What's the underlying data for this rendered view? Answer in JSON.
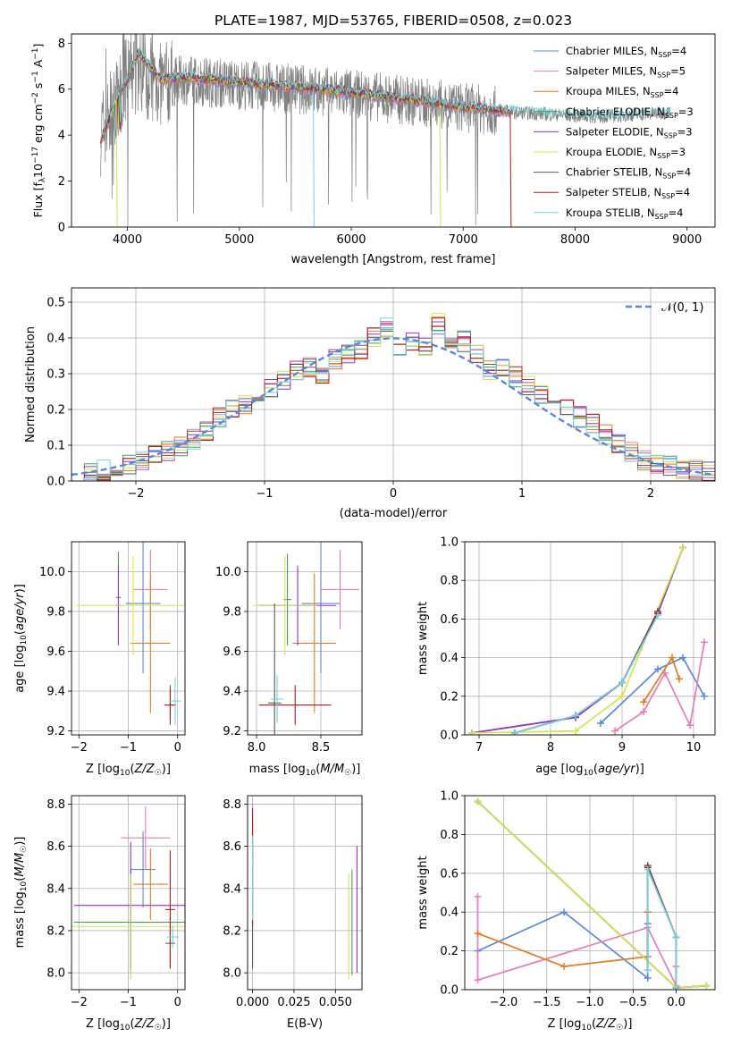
{
  "figure": {
    "title": "PLATE=1987, MJD=53765, FIBERID=0508, z=0.023"
  },
  "colors": {
    "Chabrier MILES": "#5b87d6",
    "Salpeter MILES": "#e27fb8",
    "Kroupa MILES": "#e07b20",
    "Chabrier ELODIE": "#4e9a4e",
    "Salpeter ELODIE": "#9a2fc9",
    "Kroupa ELODIE": "#d4e44a",
    "Chabrier STELIB": "#5a5a5a",
    "Salpeter STELIB": "#b01c1c",
    "Kroupa STELIB": "#72d4e0",
    "data": "#7f7f7f",
    "normal": "#5b87d6"
  },
  "chart_data": [
    {
      "id": "spectrum",
      "type": "line",
      "xlabel": "wavelength [Angstrom, rest frame]",
      "ylabel": "Flux [f_λ 10^-17 erg cm^-2 s^-1 A^-1]",
      "xlim": [
        3500,
        9250
      ],
      "ylim": [
        0,
        8.4
      ],
      "xticks": [
        "4000",
        "5000",
        "6000",
        "7000",
        "8000",
        "9000"
      ],
      "yticks": [
        "0",
        "2",
        "4",
        "6",
        "8"
      ],
      "legend_position": "upper-right",
      "legend": [
        {
          "model": "Chabrier MILES",
          "nssp": "4"
        },
        {
          "model": "Salpeter MILES",
          "nssp": "5"
        },
        {
          "model": "Kroupa MILES",
          "nssp": "4"
        },
        {
          "model": "Chabrier ELODIE",
          "nssp": "3"
        },
        {
          "model": "Salpeter ELODIE",
          "nssp": "3"
        },
        {
          "model": "Kroupa ELODIE",
          "nssp": "3"
        },
        {
          "model": "Chabrier STELIB",
          "nssp": "4"
        },
        {
          "model": "Salpeter STELIB",
          "nssp": "4"
        },
        {
          "model": "Kroupa STELIB",
          "nssp": "4"
        }
      ],
      "data_trend": {
        "x": [
          3750,
          3900,
          4000,
          4100,
          4300,
          4500,
          5000,
          5500,
          6000,
          6500,
          7000,
          7400,
          7800,
          8200,
          8600,
          8850
        ],
        "y": [
          4.0,
          5.4,
          6.5,
          6.8,
          6.2,
          6.4,
          6.2,
          6.0,
          5.8,
          5.5,
          5.2,
          5.0,
          4.9,
          4.8,
          4.9,
          5.0
        ]
      },
      "model_trend": {
        "x": [
          3750,
          3900,
          4000,
          4100,
          4300,
          4500,
          5000,
          5500,
          6000,
          6500,
          7000,
          7400,
          7800,
          8200,
          8600,
          8850
        ],
        "y": [
          3.6,
          5.5,
          6.4,
          7.6,
          6.4,
          6.5,
          6.3,
          6.1,
          5.85,
          5.55,
          5.2,
          5.05,
          4.9,
          4.75,
          4.85,
          5.0
        ]
      },
      "dropouts": [
        {
          "x": 3900,
          "y": 0.0,
          "series": "Kroupa ELODIE"
        },
        {
          "x": 5660,
          "y": 0.0,
          "series": "Kroupa STELIB"
        },
        {
          "x": 6790,
          "y": 0.0,
          "series": "Kroupa ELODIE"
        },
        {
          "x": 7420,
          "y": 0.0,
          "series": "Salpeter STELIB"
        }
      ]
    },
    {
      "id": "residuals",
      "type": "line",
      "xlabel": "(data-model)/error",
      "ylabel": "Normed distribution",
      "xlim": [
        -2.5,
        2.5
      ],
      "ylim": [
        0,
        0.54
      ],
      "xticks": [
        "−2",
        "−1",
        "0",
        "1",
        "2"
      ],
      "yticks": [
        "0.0",
        "0.1",
        "0.2",
        "0.3",
        "0.4",
        "0.5"
      ],
      "grid": true,
      "legend_position": "upper-right",
      "normal_label": "𝒩(0, 1)",
      "bin_edges": [
        -2.5,
        -2.4,
        -2.3,
        -2.2,
        -2.1,
        -2.0,
        -1.9,
        -1.8,
        -1.7,
        -1.6,
        -1.5,
        -1.4,
        -1.3,
        -1.2,
        -1.1,
        -1.0,
        -0.9,
        -0.8,
        -0.7,
        -0.6,
        -0.5,
        -0.4,
        -0.3,
        -0.2,
        -0.1,
        0.0,
        0.1,
        0.2,
        0.3,
        0.4,
        0.5,
        0.6,
        0.7,
        0.8,
        0.9,
        1.0,
        1.1,
        1.2,
        1.3,
        1.4,
        1.5,
        1.6,
        1.7,
        1.8,
        1.9,
        2.0,
        2.1,
        2.2,
        2.3,
        2.4,
        2.5
      ],
      "base_counts": [
        0.02,
        0.025,
        0.03,
        0.04,
        0.045,
        0.055,
        0.07,
        0.085,
        0.1,
        0.115,
        0.14,
        0.175,
        0.2,
        0.215,
        0.24,
        0.26,
        0.28,
        0.31,
        0.32,
        0.3,
        0.34,
        0.36,
        0.37,
        0.4,
        0.43,
        0.37,
        0.39,
        0.38,
        0.44,
        0.38,
        0.39,
        0.35,
        0.31,
        0.32,
        0.29,
        0.27,
        0.24,
        0.23,
        0.21,
        0.18,
        0.16,
        0.13,
        0.1,
        0.08,
        0.06,
        0.05,
        0.045,
        0.035,
        0.03,
        0.025
      ]
    },
    {
      "id": "age_vs_Z",
      "type": "scatter",
      "xlabel": "Z [log10(Z/Z☉)]",
      "ylabel": "age  [log10(age/yr)]",
      "xlim": [
        -2.15,
        0.15
      ],
      "ylim": [
        9.18,
        10.15
      ],
      "xticks": [
        "−2",
        "−1",
        "0"
      ],
      "yticks": [
        "9.2",
        "9.4",
        "9.6",
        "9.8",
        "10.0"
      ],
      "grid": true,
      "points": [
        {
          "series": "Chabrier MILES",
          "x": -0.7,
          "y": 9.84,
          "xerr": 0.35,
          "yerr": 0.35
        },
        {
          "series": "Salpeter MILES",
          "x": -0.55,
          "y": 9.91,
          "xerr": 0.35,
          "yerr": 0.2
        },
        {
          "series": "Kroupa MILES",
          "x": -0.55,
          "y": 9.64,
          "xerr": 0.4,
          "yerr": 0.35
        },
        {
          "series": "Chabrier ELODIE",
          "x": -1.2,
          "y": 9.87,
          "xerr": 0.05,
          "yerr": 0.23
        },
        {
          "series": "Salpeter ELODIE",
          "x": -1.2,
          "y": 9.83,
          "xerr": 0.05,
          "yerr": 0.2
        },
        {
          "series": "Kroupa ELODIE",
          "x": -0.9,
          "y": 9.83,
          "xerr": 1.15,
          "yerr": 0.25
        },
        {
          "series": "Chabrier STELIB",
          "x": -0.15,
          "y": 9.33,
          "xerr": 0.1,
          "yerr": 0.1
        },
        {
          "series": "Salpeter STELIB",
          "x": -0.15,
          "y": 9.33,
          "xerr": 0.12,
          "yerr": 0.08
        },
        {
          "series": "Kroupa STELIB",
          "x": -0.05,
          "y": 9.35,
          "xerr": 0.12,
          "yerr": 0.12
        }
      ]
    },
    {
      "id": "age_vs_mass",
      "type": "scatter",
      "xlabel": "mass [log10(M/M☉)]",
      "ylabel": "",
      "xlim": [
        7.93,
        8.82
      ],
      "ylim": [
        9.18,
        10.15
      ],
      "xticks": [
        "8.0",
        "8.5"
      ],
      "yticks": [
        "9.2",
        "9.4",
        "9.6",
        "9.8",
        "10.0"
      ],
      "grid": true,
      "points": [
        {
          "series": "Chabrier MILES",
          "x": 8.5,
          "y": 9.84,
          "xerr": 0.15,
          "yerr": 0.35
        },
        {
          "series": "Salpeter MILES",
          "x": 8.65,
          "y": 9.91,
          "xerr": 0.15,
          "yerr": 0.2
        },
        {
          "series": "Kroupa MILES",
          "x": 8.45,
          "y": 9.64,
          "xerr": 0.17,
          "yerr": 0.35
        },
        {
          "series": "Chabrier ELODIE",
          "x": 8.24,
          "y": 9.86,
          "xerr": 0.03,
          "yerr": 0.23
        },
        {
          "series": "Salpeter ELODIE",
          "x": 8.32,
          "y": 9.83,
          "xerr": 0.3,
          "yerr": 0.2
        },
        {
          "series": "Kroupa ELODIE",
          "x": 8.22,
          "y": 9.83,
          "xerr": 0.25,
          "yerr": 0.25
        },
        {
          "series": "Chabrier STELIB",
          "x": 8.14,
          "y": 9.34,
          "xerr": 0.05,
          "yerr": 0.5
        },
        {
          "series": "Salpeter STELIB",
          "x": 8.3,
          "y": 9.33,
          "xerr": 0.28,
          "yerr": 0.1
        },
        {
          "series": "Kroupa STELIB",
          "x": 8.16,
          "y": 9.36,
          "xerr": 0.05,
          "yerr": 0.12
        }
      ]
    },
    {
      "id": "weight_vs_age",
      "type": "line",
      "xlabel": "age  [log10(age/yr)]",
      "ylabel": "mass weight",
      "xlim": [
        6.8,
        10.3
      ],
      "ylim": [
        0,
        1.0
      ],
      "xticks": [
        "7",
        "8",
        "9",
        "10"
      ],
      "yticks": [
        "0.0",
        "0.2",
        "0.4",
        "0.6",
        "0.8",
        "1.0"
      ],
      "grid": true,
      "series": [
        {
          "name": "Chabrier MILES",
          "x": [
            8.7,
            9.5,
            9.85,
            10.15
          ],
          "y": [
            0.06,
            0.34,
            0.4,
            0.2
          ]
        },
        {
          "name": "Salpeter MILES",
          "x": [
            8.9,
            9.3,
            9.6,
            9.95,
            10.15
          ],
          "y": [
            0.02,
            0.12,
            0.32,
            0.05,
            0.48
          ]
        },
        {
          "name": "Kroupa MILES",
          "x": [
            9.3,
            9.7,
            9.8
          ],
          "y": [
            0.17,
            0.4,
            0.29
          ]
        },
        {
          "name": "Chabrier ELODIE",
          "x": [
            6.9,
            8.35,
            9.0,
            9.5,
            9.85
          ],
          "y": [
            0.01,
            0.09,
            0.27,
            0.63,
            0.97
          ]
        },
        {
          "name": "Salpeter ELODIE",
          "x": [
            6.9,
            8.35,
            9.0,
            9.5,
            9.85
          ],
          "y": [
            0.01,
            0.09,
            0.27,
            0.63,
            0.97
          ]
        },
        {
          "name": "Kroupa ELODIE",
          "x": [
            6.9,
            8.35,
            9.0,
            9.85
          ],
          "y": [
            0.01,
            0.02,
            0.2,
            0.97
          ]
        },
        {
          "name": "Chabrier STELIB",
          "x": [
            7.5,
            8.35,
            9.0,
            9.5
          ],
          "y": [
            0.01,
            0.1,
            0.27,
            0.64
          ]
        },
        {
          "name": "Salpeter STELIB",
          "x": [
            7.5,
            8.35,
            9.0,
            9.5
          ],
          "y": [
            0.01,
            0.1,
            0.27,
            0.63
          ]
        },
        {
          "name": "Kroupa STELIB",
          "x": [
            7.5,
            8.35,
            9.0,
            9.5
          ],
          "y": [
            0.01,
            0.1,
            0.27,
            0.62
          ]
        }
      ]
    },
    {
      "id": "mass_vs_Z",
      "type": "scatter",
      "xlabel": "Z [log10(Z/Z☉)]",
      "ylabel": "mass [log10(M/M☉)]",
      "xlim": [
        -2.15,
        0.15
      ],
      "ylim": [
        7.92,
        8.84
      ],
      "xticks": [
        "−2",
        "−1",
        "0"
      ],
      "yticks": [
        "8.0",
        "8.2",
        "8.4",
        "8.6",
        "8.8"
      ],
      "grid": true,
      "points": [
        {
          "series": "Chabrier MILES",
          "x": -0.7,
          "y": 8.49,
          "xerr": 0.25,
          "yerr": 0.18
        },
        {
          "series": "Salpeter MILES",
          "x": -0.65,
          "y": 8.64,
          "xerr": 0.5,
          "yerr": 0.15
        },
        {
          "series": "Kroupa MILES",
          "x": -0.55,
          "y": 8.42,
          "xerr": 0.35,
          "yerr": 0.17
        },
        {
          "series": "Chabrier ELODIE",
          "x": -0.95,
          "y": 8.24,
          "xerr": 1.15,
          "yerr": 0.25
        },
        {
          "series": "Salpeter ELODIE",
          "x": -0.95,
          "y": 8.32,
          "xerr": 1.15,
          "yerr": 0.3
        },
        {
          "series": "Kroupa ELODIE",
          "x": -0.95,
          "y": 8.22,
          "xerr": 1.2,
          "yerr": 0.25
        },
        {
          "series": "Chabrier STELIB",
          "x": -0.15,
          "y": 8.14,
          "xerr": 0.1,
          "yerr": 0.12
        },
        {
          "series": "Salpeter STELIB",
          "x": -0.15,
          "y": 8.3,
          "xerr": 0.1,
          "yerr": 0.28
        },
        {
          "series": "Kroupa STELIB",
          "x": -0.1,
          "y": 8.17,
          "xerr": 0.12,
          "yerr": 0.05
        }
      ]
    },
    {
      "id": "mass_vs_EBV",
      "type": "scatter",
      "xlabel": "E(B-V)",
      "ylabel": "",
      "xlim": [
        -0.003,
        0.066
      ],
      "ylim": [
        7.92,
        8.84
      ],
      "xticks": [
        "0.000",
        "0.025",
        "0.050"
      ],
      "yticks": [
        "8.0",
        "8.2",
        "8.4",
        "8.6",
        "8.8"
      ],
      "grid": true,
      "points": [
        {
          "series": "Chabrier MILES",
          "x": 0.0,
          "y": 8.5,
          "xerr": 0,
          "yerr": 0.2
        },
        {
          "series": "Salpeter MILES",
          "x": 0.0,
          "y": 8.65,
          "xerr": 0,
          "yerr": 0.15
        },
        {
          "series": "Kroupa MILES",
          "x": 0.0,
          "y": 8.42,
          "xerr": 0,
          "yerr": 0.15
        },
        {
          "series": "Chabrier ELODIE",
          "x": 0.06,
          "y": 8.24,
          "xerr": 0,
          "yerr": 0.25
        },
        {
          "series": "Salpeter ELODIE",
          "x": 0.063,
          "y": 8.3,
          "xerr": 0,
          "yerr": 0.3
        },
        {
          "series": "Kroupa ELODIE",
          "x": 0.058,
          "y": 8.22,
          "xerr": 0,
          "yerr": 0.25
        },
        {
          "series": "Chabrier STELIB",
          "x": 0.0,
          "y": 8.14,
          "xerr": 0,
          "yerr": 0.12
        },
        {
          "series": "Salpeter STELIB",
          "x": 0.0,
          "y": 8.5,
          "xerr": 0,
          "yerr": 0.28
        },
        {
          "series": "Kroupa STELIB",
          "x": 0.0,
          "y": 8.45,
          "xerr": 0,
          "yerr": 0.2
        }
      ]
    },
    {
      "id": "weight_vs_Z",
      "type": "line",
      "xlabel": "Z [log10(Z/Z☉)]",
      "ylabel": "mass weight",
      "xlim": [
        -2.45,
        0.45
      ],
      "ylim": [
        0,
        1.0
      ],
      "xticks": [
        "−2.0",
        "−1.5",
        "−1.0",
        "−0.5",
        "0.0"
      ],
      "yticks": [
        "0.0",
        "0.2",
        "0.4",
        "0.6",
        "0.8",
        "1.0"
      ],
      "grid": true,
      "series": [
        {
          "name": "Chabrier MILES",
          "x": [
            -2.3,
            -1.3,
            -0.33,
            -0.33
          ],
          "y": [
            0.2,
            0.4,
            0.06,
            0.34
          ]
        },
        {
          "name": "Salpeter MILES",
          "x": [
            -2.3,
            -2.3,
            -0.33,
            0.0,
            0.0
          ],
          "y": [
            0.48,
            0.05,
            0.32,
            0.02,
            0.12
          ]
        },
        {
          "name": "Kroupa MILES",
          "x": [
            -2.3,
            -1.3,
            -0.33,
            -0.33
          ],
          "y": [
            0.29,
            0.12,
            0.17,
            0.4
          ]
        },
        {
          "name": "Chabrier ELODIE",
          "x": [
            -2.3,
            0.0,
            0.35
          ],
          "y": [
            0.97,
            0.01,
            0.02
          ]
        },
        {
          "name": "Salpeter ELODIE",
          "x": [
            -2.3,
            0.0,
            0.35
          ],
          "y": [
            0.97,
            0.01,
            0.02
          ]
        },
        {
          "name": "Kroupa ELODIE",
          "x": [
            -2.3,
            0.0,
            0.35
          ],
          "y": [
            0.97,
            0.01,
            0.02
          ]
        },
        {
          "name": "Chabrier STELIB",
          "x": [
            -0.33,
            -0.33,
            0.0,
            0.0
          ],
          "y": [
            0.1,
            0.64,
            0.27,
            0.01
          ]
        },
        {
          "name": "Salpeter STELIB",
          "x": [
            -0.33,
            -0.33,
            0.0,
            0.0
          ],
          "y": [
            0.1,
            0.63,
            0.27,
            0.01
          ]
        },
        {
          "name": "Kroupa STELIB",
          "x": [
            -0.33,
            -0.33,
            0.0,
            0.0
          ],
          "y": [
            0.1,
            0.62,
            0.27,
            0.01
          ]
        }
      ]
    }
  ]
}
